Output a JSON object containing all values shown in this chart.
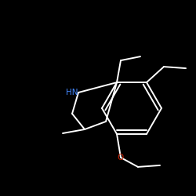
{
  "background_color": "#000000",
  "bond_color": "#ffffff",
  "hn_color": "#4488ff",
  "o_color": "#cc2200",
  "figsize": [
    2.5,
    2.5
  ],
  "dpi": 100,
  "xlim": [
    0,
    250
  ],
  "ylim": [
    0,
    250
  ]
}
